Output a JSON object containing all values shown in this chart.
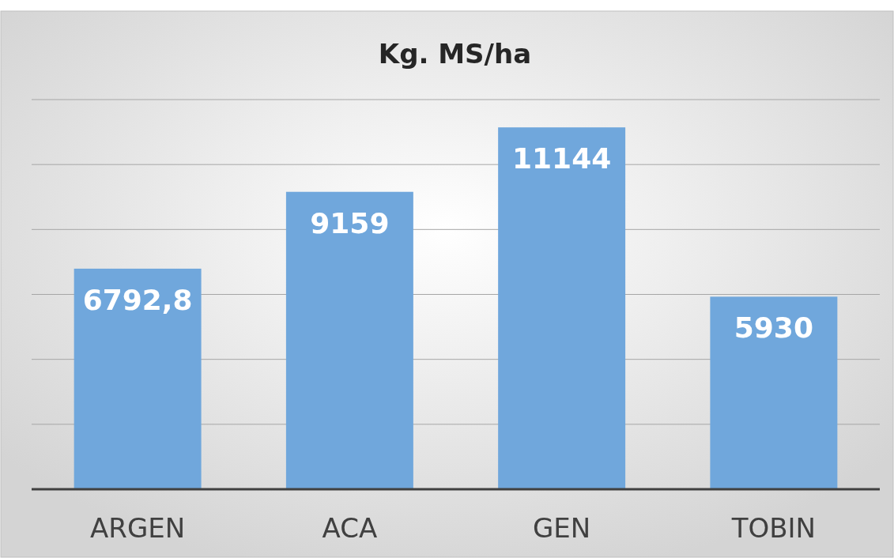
{
  "chart_data": {
    "type": "bar",
    "title": "Kg. MS/ha",
    "categories": [
      "ARGEN",
      "ACA",
      "GEN",
      "TOBIN"
    ],
    "values": [
      6792.8,
      9159,
      11144,
      5930
    ],
    "value_labels": [
      "6792,8",
      "9159",
      "11144",
      "5930"
    ],
    "color": "#70a7dc",
    "ylim": [
      0,
      12000
    ],
    "yticks": [
      {
        "value": 0,
        "label": null
      },
      {
        "value": 2000,
        "label": null
      },
      {
        "value": 4000,
        "label": null
      },
      {
        "value": 6000,
        "label": null
      },
      {
        "value": 8000,
        "label": null
      },
      {
        "value": 10000,
        "label": null
      },
      {
        "value": 12000,
        "label": null
      }
    ],
    "tick_labels": "x",
    "grid": "y"
  }
}
